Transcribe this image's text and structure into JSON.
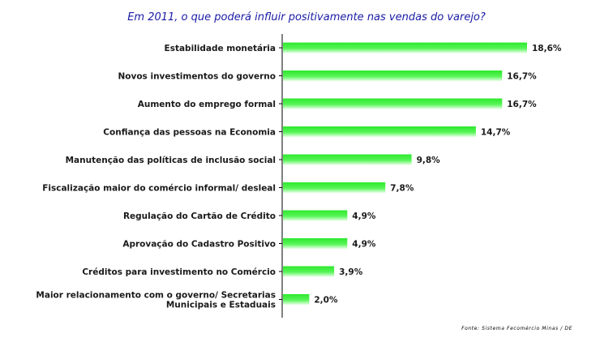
{
  "chart_data": {
    "type": "bar",
    "orientation": "horizontal",
    "title": "Em 2011, o que poderá influir positivamente nas vendas do varejo?",
    "categories": [
      "Estabilidade monetária",
      "Novos investimentos do governo",
      "Aumento do emprego formal",
      "Confiança das pessoas na Economia",
      "Manutenção das políticas de inclusão social",
      "Fiscalização maior do comércio informal/ desleal",
      "Regulação do Cartão de Crédito",
      "Aprovação do Cadastro Positivo",
      "Créditos para investimento no Comércio",
      "Maior relacionamento com o governo/ Secretarias Municipais e Estaduais"
    ],
    "category_lines": [
      [
        "Estabilidade monetária"
      ],
      [
        "Novos investimentos do governo"
      ],
      [
        "Aumento do emprego formal"
      ],
      [
        "Confiança das pessoas na Economia"
      ],
      [
        "Manutenção das políticas de inclusão social"
      ],
      [
        "Fiscalização maior do comércio informal/ desleal"
      ],
      [
        "Regulação do Cartão de Crédito"
      ],
      [
        "Aprovação do Cadastro Positivo"
      ],
      [
        "Créditos para investimento no Comércio"
      ],
      [
        "Maior relacionamento com o governo/ Secretarias",
        "Municipais e Estaduais"
      ]
    ],
    "values": [
      18.6,
      16.7,
      16.7,
      14.7,
      9.8,
      7.8,
      4.9,
      4.9,
      3.9,
      2.0
    ],
    "value_labels": [
      "18,6%",
      "16,7%",
      "16,7%",
      "14,7%",
      "9,8%",
      "7,8%",
      "4,9%",
      "4,9%",
      "3,9%",
      "2,0%"
    ],
    "xlim": [
      0,
      20
    ],
    "grid": false,
    "bar_color": "#33ee33",
    "title_color": "#1a1aa6"
  },
  "source": "Fonte: Sistema Fecomércio Minas / DE"
}
